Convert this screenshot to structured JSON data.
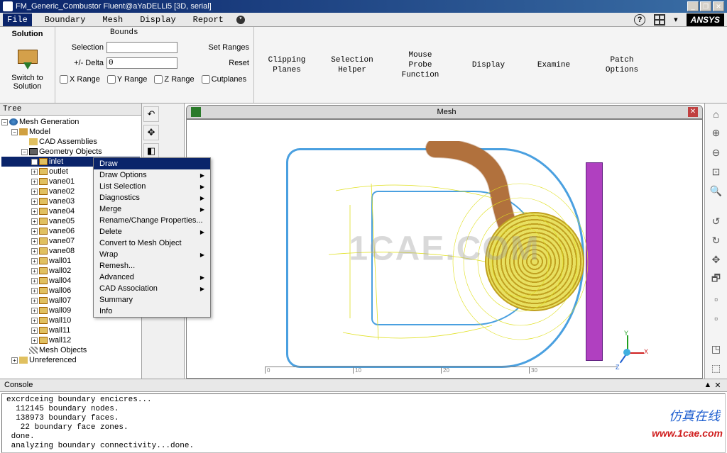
{
  "window": {
    "title": "FM_Generic_Combustor Fluent@aYaDELLi5  [3D, serial]",
    "min": "_",
    "restore": "❐",
    "close": "✕"
  },
  "menubar": {
    "items": [
      "File",
      "Boundary",
      "Mesh",
      "Display",
      "Report"
    ],
    "expand": "▾",
    "help": "?",
    "logo": "ANSYS"
  },
  "ribbon": {
    "solution": {
      "header": "Solution",
      "icon_label": "Switch to\nSolution"
    },
    "bounds": {
      "header": "Bounds",
      "selection_label": "Selection",
      "selection_value": "",
      "delta_label": "+/- Delta",
      "delta_value": "0",
      "set_ranges": "Set Ranges",
      "reset": "Reset",
      "cb": [
        "X Range",
        "Y Range",
        "Z Range",
        "Cutplanes"
      ]
    },
    "tools": [
      "Clipping\nPlanes",
      "Selection\nHelper",
      "Mouse\nProbe\nFunction",
      "Display",
      "Examine",
      "Patch\nOptions"
    ]
  },
  "tree": {
    "header": "Tree",
    "root": "Mesh Generation",
    "model": "Model",
    "cad": "CAD Assemblies",
    "geom": "Geometry Objects",
    "items": [
      "inlet",
      "outlet",
      "vane01",
      "vane02",
      "vane03",
      "vane04",
      "vane05",
      "vane06",
      "vane07",
      "vane08",
      "wall01",
      "wall02",
      "wall04",
      "wall06",
      "wall07",
      "wall09",
      "wall10",
      "wall11",
      "wall12"
    ],
    "mesh_obj": "Mesh Objects",
    "unref": "Unreferenced",
    "selected": "inlet"
  },
  "viewport": {
    "tab_title": "Mesh",
    "ruler": [
      "0",
      "10",
      "20",
      "30"
    ],
    "triad": {
      "x": "X",
      "y": "Y",
      "z": "Z"
    }
  },
  "side_tools": [
    "⌂",
    "⊕",
    "⊖",
    "⊡",
    "🔍",
    "↺",
    "↻",
    "✥",
    "🗗",
    "▫",
    "▫",
    "◳",
    "⬚"
  ],
  "tool_col": [
    "↶",
    "✥",
    "◧",
    "○",
    "⬚",
    "◫"
  ],
  "context_menu": {
    "items": [
      {
        "label": "Draw",
        "selected": true
      },
      {
        "label": "Draw Options",
        "sub": true
      },
      {
        "label": "List Selection",
        "sub": true
      },
      {
        "label": "Diagnostics",
        "sub": true
      },
      {
        "label": "Merge",
        "sub": true
      },
      {
        "label": "Rename/Change Properties..."
      },
      {
        "label": "Delete",
        "sub": true
      },
      {
        "label": "Convert to Mesh Object"
      },
      {
        "label": "Wrap",
        "sub": true
      },
      {
        "label": "Remesh..."
      },
      {
        "label": "Advanced",
        "sub": true
      },
      {
        "label": "CAD Association",
        "sub": true
      },
      {
        "label": "Summary"
      },
      {
        "label": "Info"
      }
    ]
  },
  "console": {
    "header": "Console",
    "lines": [
      "excrdceing boundary encicres...",
      "  112145 boundary nodes.",
      "  138973 boundary faces.",
      "   22 boundary face zones.",
      " done.",
      " analyzing boundary connectivity...done."
    ]
  },
  "watermarks": {
    "center": "1CAE.COM",
    "cn": "仿真在线",
    "url": "www.1cae.com"
  },
  "colors": {
    "titlebar_start": "#0a246a",
    "titlebar_end": "#3a6ea5",
    "selection": "#0a246a",
    "wire": "#e0e020",
    "edge": "#4aa0e0",
    "swirl": "#c0a020",
    "wall": "#b040c0",
    "tube": "#c0804a"
  }
}
